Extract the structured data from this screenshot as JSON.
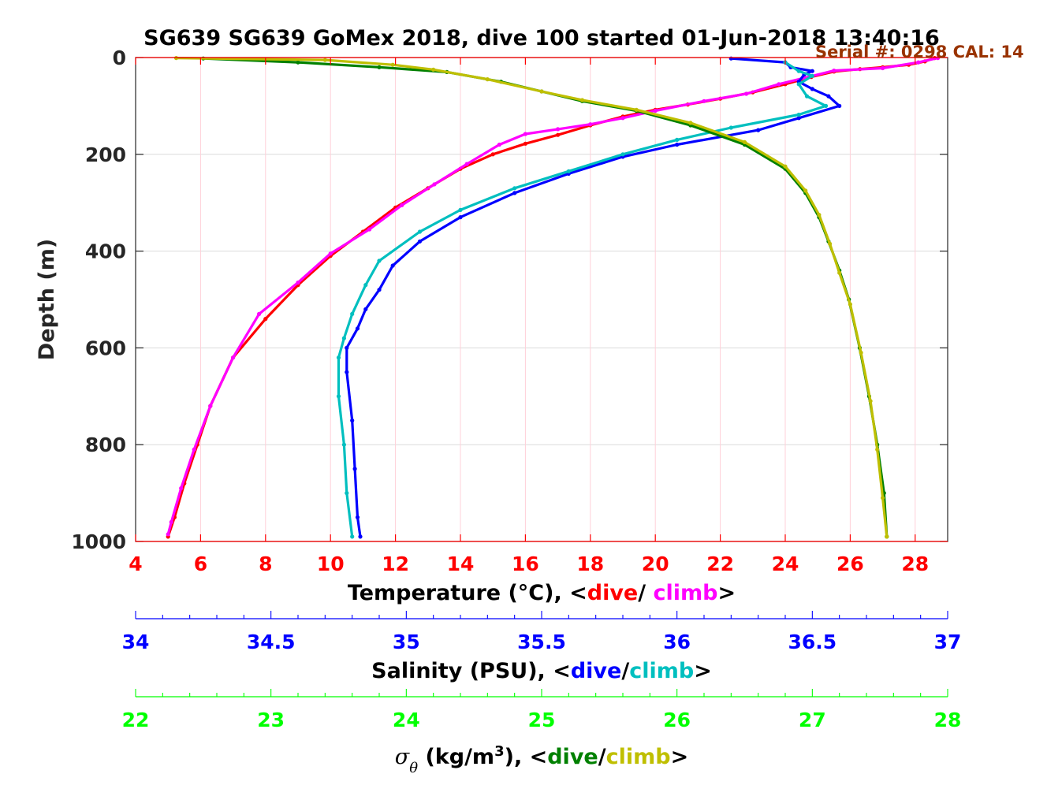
{
  "chart_data": {
    "type": "scatter",
    "title": "SG639 SG639 GoMex 2018, dive 100 started 01-Jun-2018 13:40:16",
    "annotation": "Serial #: 0298  CAL: 14",
    "ylabel": "Depth (m)",
    "ylim": [
      0,
      1000
    ],
    "y_reversed": true,
    "yticks": [
      0,
      200,
      400,
      600,
      800,
      1000
    ],
    "grid": true,
    "axes": [
      {
        "key": "temperature",
        "label_parts": [
          {
            "text": "Temperature (°C), <",
            "color": "#000000"
          },
          {
            "text": "dive",
            "color": "#ff0000"
          },
          {
            "text": "/ ",
            "color": "#000000"
          },
          {
            "text": "climb",
            "color": "#ff00ff"
          },
          {
            "text": ">",
            "color": "#000000"
          }
        ],
        "color": "#ff0000",
        "xlim": [
          4,
          29
        ],
        "ticks": [
          4,
          6,
          8,
          10,
          12,
          14,
          16,
          18,
          20,
          22,
          24,
          26,
          28
        ]
      },
      {
        "key": "salinity",
        "label_parts": [
          {
            "text": "Salinity (PSU), <",
            "color": "#000000"
          },
          {
            "text": "dive",
            "color": "#0000ff"
          },
          {
            "text": "/",
            "color": "#000000"
          },
          {
            "text": "climb",
            "color": "#00bfbf"
          },
          {
            "text": ">",
            "color": "#000000"
          }
        ],
        "color": "#0000ff",
        "xlim": [
          34,
          37
        ],
        "ticks": [
          34,
          34.5,
          35,
          35.5,
          36,
          36.5,
          37
        ]
      },
      {
        "key": "sigma",
        "label_parts": [
          {
            "text": "σ",
            "color": "#000000"
          },
          {
            "text": "θ",
            "color": "#000000",
            "sub": true
          },
          {
            "text": " (kg/m",
            "color": "#000000"
          },
          {
            "text": "3",
            "color": "#000000",
            "sup": true
          },
          {
            "text": "), <",
            "color": "#000000"
          },
          {
            "text": "dive",
            "color": "#008000"
          },
          {
            "text": "/",
            "color": "#000000"
          },
          {
            "text": "climb",
            "color": "#bfbf00"
          },
          {
            "text": ">",
            "color": "#000000"
          }
        ],
        "color": "#00ff00",
        "xlim": [
          22,
          28
        ],
        "ticks": [
          22,
          23,
          24,
          25,
          26,
          27,
          28
        ]
      }
    ],
    "series": [
      {
        "name": "dive",
        "axis": "temperature",
        "color": "#ff0000",
        "points": [
          [
            28.6,
            1
          ],
          [
            28.3,
            8
          ],
          [
            27.8,
            15
          ],
          [
            27.0,
            20
          ],
          [
            26.3,
            24
          ],
          [
            25.5,
            29
          ],
          [
            24.8,
            40
          ],
          [
            24.0,
            55
          ],
          [
            23.0,
            72
          ],
          [
            22.0,
            85
          ],
          [
            21.0,
            97
          ],
          [
            20.0,
            108
          ],
          [
            19.0,
            122
          ],
          [
            18.0,
            140
          ],
          [
            17.0,
            160
          ],
          [
            16.0,
            178
          ],
          [
            15.0,
            200
          ],
          [
            14.0,
            230
          ],
          [
            13.0,
            270
          ],
          [
            12.0,
            310
          ],
          [
            11.0,
            360
          ],
          [
            10.0,
            410
          ],
          [
            9.0,
            470
          ],
          [
            8.0,
            540
          ],
          [
            7.0,
            620
          ],
          [
            6.3,
            720
          ],
          [
            5.9,
            800
          ],
          [
            5.5,
            880
          ],
          [
            5.2,
            950
          ],
          [
            5.0,
            990
          ]
        ]
      },
      {
        "name": "climb",
        "axis": "temperature",
        "color": "#ff00ff",
        "points": [
          [
            28.7,
            1
          ],
          [
            28.1,
            10
          ],
          [
            27.0,
            22
          ],
          [
            25.5,
            27
          ],
          [
            24.6,
            42
          ],
          [
            23.8,
            55
          ],
          [
            22.8,
            75
          ],
          [
            21.5,
            90
          ],
          [
            20.0,
            110
          ],
          [
            19.0,
            125
          ],
          [
            18.0,
            138
          ],
          [
            17.0,
            148
          ],
          [
            16.0,
            158
          ],
          [
            15.2,
            180
          ],
          [
            14.2,
            220
          ],
          [
            13.2,
            262
          ],
          [
            12.2,
            305
          ],
          [
            11.2,
            355
          ],
          [
            10.0,
            405
          ],
          [
            9.0,
            465
          ],
          [
            7.8,
            530
          ],
          [
            7.0,
            620
          ],
          [
            6.3,
            720
          ],
          [
            5.8,
            810
          ],
          [
            5.4,
            890
          ],
          [
            5.1,
            960
          ],
          [
            5.0,
            985
          ]
        ]
      },
      {
        "name": "dive",
        "axis": "salinity",
        "color": "#0000ff",
        "points": [
          [
            36.2,
            2
          ],
          [
            36.4,
            10
          ],
          [
            36.42,
            20
          ],
          [
            36.5,
            28
          ],
          [
            36.47,
            35
          ],
          [
            36.45,
            50
          ],
          [
            36.5,
            65
          ],
          [
            36.56,
            80
          ],
          [
            36.6,
            100
          ],
          [
            36.45,
            125
          ],
          [
            36.3,
            150
          ],
          [
            36.0,
            180
          ],
          [
            35.8,
            205
          ],
          [
            35.6,
            240
          ],
          [
            35.4,
            280
          ],
          [
            35.2,
            330
          ],
          [
            35.05,
            380
          ],
          [
            34.95,
            430
          ],
          [
            34.9,
            480
          ],
          [
            34.85,
            520
          ],
          [
            34.82,
            560
          ],
          [
            34.78,
            600
          ],
          [
            34.78,
            650
          ],
          [
            34.8,
            750
          ],
          [
            34.81,
            850
          ],
          [
            34.82,
            950
          ],
          [
            34.83,
            990
          ]
        ]
      },
      {
        "name": "climb",
        "axis": "salinity",
        "color": "#00bfbf",
        "points": [
          [
            36.4,
            10
          ],
          [
            36.45,
            28
          ],
          [
            36.5,
            38
          ],
          [
            36.45,
            55
          ],
          [
            36.48,
            80
          ],
          [
            36.55,
            100
          ],
          [
            36.45,
            118
          ],
          [
            36.2,
            145
          ],
          [
            36.0,
            170
          ],
          [
            35.8,
            200
          ],
          [
            35.6,
            235
          ],
          [
            35.4,
            270
          ],
          [
            35.2,
            315
          ],
          [
            35.05,
            360
          ],
          [
            34.9,
            420
          ],
          [
            34.85,
            470
          ],
          [
            34.8,
            530
          ],
          [
            34.77,
            580
          ],
          [
            34.75,
            620
          ],
          [
            34.75,
            700
          ],
          [
            34.77,
            800
          ],
          [
            34.78,
            900
          ],
          [
            34.8,
            990
          ]
        ]
      },
      {
        "name": "dive",
        "axis": "sigma",
        "color": "#008000",
        "points": [
          [
            22.5,
            2
          ],
          [
            23.2,
            10
          ],
          [
            23.8,
            20
          ],
          [
            24.3,
            30
          ],
          [
            24.7,
            50
          ],
          [
            25.0,
            70
          ],
          [
            25.3,
            90
          ],
          [
            25.7,
            110
          ],
          [
            26.1,
            140
          ],
          [
            26.5,
            180
          ],
          [
            26.8,
            230
          ],
          [
            26.95,
            280
          ],
          [
            27.05,
            330
          ],
          [
            27.12,
            380
          ],
          [
            27.2,
            440
          ],
          [
            27.27,
            500
          ],
          [
            27.35,
            600
          ],
          [
            27.42,
            700
          ],
          [
            27.48,
            800
          ],
          [
            27.53,
            900
          ],
          [
            27.55,
            990
          ]
        ]
      },
      {
        "name": "climb",
        "axis": "sigma",
        "color": "#bfbf00",
        "points": [
          [
            22.3,
            1
          ],
          [
            23.4,
            5
          ],
          [
            23.9,
            15
          ],
          [
            24.2,
            25
          ],
          [
            24.6,
            45
          ],
          [
            25.0,
            70
          ],
          [
            25.3,
            88
          ],
          [
            25.7,
            108
          ],
          [
            26.1,
            135
          ],
          [
            26.5,
            175
          ],
          [
            26.8,
            225
          ],
          [
            26.95,
            275
          ],
          [
            27.05,
            325
          ],
          [
            27.13,
            385
          ],
          [
            27.2,
            445
          ],
          [
            27.28,
            510
          ],
          [
            27.36,
            610
          ],
          [
            27.43,
            710
          ],
          [
            27.48,
            810
          ],
          [
            27.52,
            910
          ],
          [
            27.55,
            990
          ]
        ]
      }
    ]
  }
}
